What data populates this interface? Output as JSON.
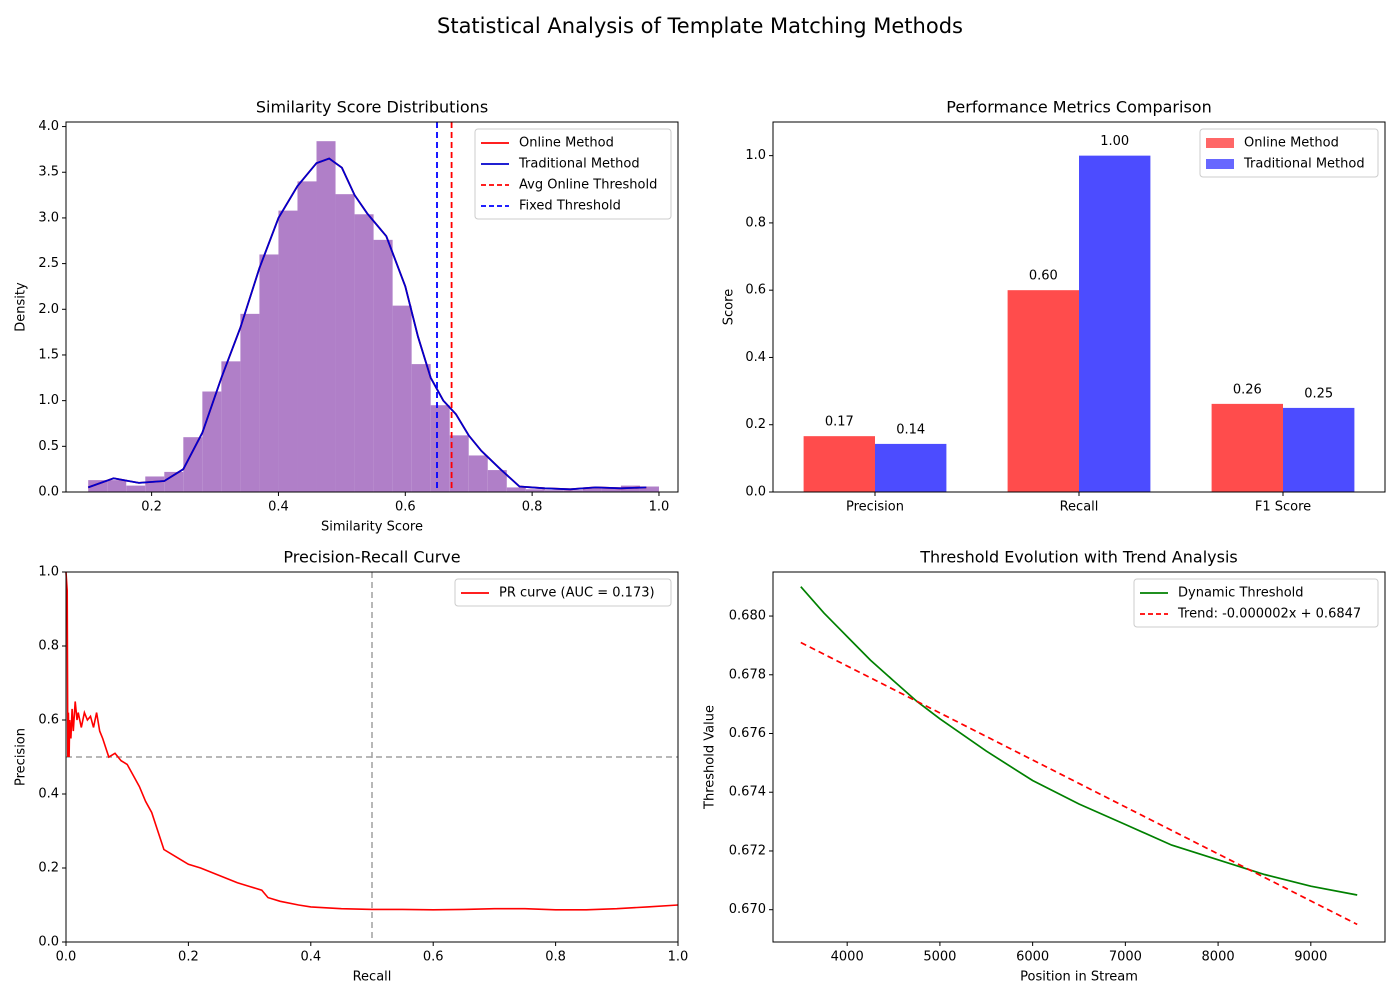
{
  "figure": {
    "title": "Statistical Analysis of Template Matching Methods"
  },
  "chart_data": [
    {
      "id": "dist",
      "type": "histogram+line",
      "title": "Similarity Score Distributions",
      "xlabel": "Similarity Score",
      "ylabel": "Density",
      "xlim": [
        0.065,
        1.03
      ],
      "ylim": [
        0,
        4.05
      ],
      "xticks": [
        0.2,
        0.4,
        0.6,
        0.8,
        1.0
      ],
      "xtick_labels": [
        "0.2",
        "0.4",
        "0.6",
        "0.8",
        "1.0"
      ],
      "yticks": [
        0,
        0.5,
        1.0,
        1.5,
        2.0,
        2.5,
        3.0,
        3.5,
        4.0
      ],
      "ytick_labels": [
        "0.0",
        "0.5",
        "1.0",
        "1.5",
        "2.0",
        "2.5",
        "3.0",
        "3.5",
        "4.0"
      ],
      "histogram": {
        "color": "#b07fc8",
        "bin_edges": [
          0.1,
          0.13,
          0.16,
          0.19,
          0.22,
          0.25,
          0.28,
          0.31,
          0.34,
          0.37,
          0.4,
          0.43,
          0.46,
          0.49,
          0.52,
          0.55,
          0.58,
          0.61,
          0.64,
          0.67,
          0.7,
          0.73,
          0.76,
          0.79,
          0.82,
          0.85,
          0.88,
          0.91,
          0.94,
          0.97,
          1.0
        ],
        "density": [
          0.13,
          0.13,
          0.07,
          0.17,
          0.22,
          0.6,
          1.1,
          1.43,
          1.95,
          2.6,
          3.08,
          3.4,
          3.84,
          3.26,
          3.04,
          2.76,
          2.04,
          1.4,
          0.95,
          0.62,
          0.4,
          0.24,
          0.05,
          0.03,
          0.02,
          0.02,
          0.04,
          0.05,
          0.07,
          0.06
        ]
      },
      "series": [
        {
          "name": "Online Method",
          "color": "#ff0000",
          "style": "solid",
          "x": [
            0.1,
            0.14,
            0.18,
            0.22,
            0.25,
            0.28,
            0.31,
            0.34,
            0.37,
            0.4,
            0.43,
            0.46,
            0.48,
            0.5,
            0.52,
            0.54,
            0.57,
            0.6,
            0.62,
            0.64,
            0.66,
            0.68,
            0.7,
            0.72,
            0.75,
            0.78,
            0.82,
            0.86,
            0.9,
            0.94,
            0.98
          ],
          "y": [
            0.05,
            0.15,
            0.1,
            0.12,
            0.25,
            0.65,
            1.25,
            1.8,
            2.45,
            3.0,
            3.35,
            3.6,
            3.65,
            3.55,
            3.25,
            3.05,
            2.8,
            2.25,
            1.7,
            1.25,
            1.0,
            0.85,
            0.62,
            0.45,
            0.25,
            0.06,
            0.04,
            0.03,
            0.05,
            0.04,
            0.05
          ]
        },
        {
          "name": "Traditional Method",
          "color": "#0000cc",
          "style": "solid",
          "x": [
            0.1,
            0.14,
            0.18,
            0.22,
            0.25,
            0.28,
            0.31,
            0.34,
            0.37,
            0.4,
            0.43,
            0.46,
            0.48,
            0.5,
            0.52,
            0.54,
            0.57,
            0.6,
            0.62,
            0.64,
            0.66,
            0.68,
            0.7,
            0.72,
            0.75,
            0.78,
            0.82,
            0.86,
            0.9,
            0.94,
            0.98
          ],
          "y": [
            0.05,
            0.15,
            0.1,
            0.12,
            0.25,
            0.65,
            1.25,
            1.8,
            2.45,
            3.0,
            3.35,
            3.6,
            3.65,
            3.55,
            3.25,
            3.05,
            2.8,
            2.25,
            1.7,
            1.25,
            1.0,
            0.85,
            0.62,
            0.45,
            0.25,
            0.06,
            0.04,
            0.03,
            0.05,
            0.04,
            0.05
          ]
        },
        {
          "name": "Avg Online Threshold",
          "color": "#ff0000",
          "style": "dashed",
          "vline": 0.673
        },
        {
          "name": "Fixed Threshold",
          "color": "#0000ff",
          "style": "dashed",
          "vline": 0.65
        }
      ],
      "legend": "top-right"
    },
    {
      "id": "metrics",
      "type": "bar",
      "title": "Performance Metrics Comparison",
      "xlabel": "",
      "ylabel": "Score",
      "ylim": [
        0,
        1.1
      ],
      "categories": [
        "Precision",
        "Recall",
        "F1 Score"
      ],
      "yticks": [
        0,
        0.2,
        0.4,
        0.6,
        0.8,
        1.0
      ],
      "ytick_labels": [
        "0.0",
        "0.2",
        "0.4",
        "0.6",
        "0.8",
        "1.0"
      ],
      "series": [
        {
          "name": "Online Method",
          "color": "#ff4c4c",
          "values": [
            0.166,
            0.6,
            0.262
          ],
          "labels": [
            "0.17",
            "0.60",
            "0.26"
          ]
        },
        {
          "name": "Traditional Method",
          "color": "#4c4cff",
          "values": [
            0.143,
            1.0,
            0.25
          ],
          "labels": [
            "0.14",
            "1.00",
            "0.25"
          ]
        }
      ],
      "legend": "top-right"
    },
    {
      "id": "pr",
      "type": "line",
      "title": "Precision-Recall Curve",
      "xlabel": "Recall",
      "ylabel": "Precision",
      "xlim": [
        0,
        1
      ],
      "ylim": [
        0,
        1
      ],
      "xticks": [
        0,
        0.2,
        0.4,
        0.6,
        0.8,
        1.0
      ],
      "xtick_labels": [
        "0.0",
        "0.2",
        "0.4",
        "0.6",
        "0.8",
        "1.0"
      ],
      "yticks": [
        0,
        0.2,
        0.4,
        0.6,
        0.8,
        1.0
      ],
      "ytick_labels": [
        "0.0",
        "0.2",
        "0.4",
        "0.6",
        "0.8",
        "1.0"
      ],
      "reference_lines": {
        "hline": 0.5,
        "vline": 0.5,
        "color": "#a0a0a0"
      },
      "series": [
        {
          "name": "PR curve (AUC = 0.173)",
          "color": "#ff0000",
          "x": [
            0.0,
            0.002,
            0.003,
            0.004,
            0.005,
            0.006,
            0.008,
            0.01,
            0.012,
            0.015,
            0.018,
            0.02,
            0.025,
            0.03,
            0.035,
            0.04,
            0.045,
            0.05,
            0.055,
            0.06,
            0.07,
            0.08,
            0.09,
            0.1,
            0.11,
            0.12,
            0.13,
            0.14,
            0.15,
            0.16,
            0.18,
            0.2,
            0.22,
            0.25,
            0.28,
            0.3,
            0.32,
            0.33,
            0.35,
            0.38,
            0.4,
            0.45,
            0.5,
            0.55,
            0.6,
            0.65,
            0.7,
            0.75,
            0.8,
            0.85,
            0.9,
            0.95,
            1.0
          ],
          "y": [
            1.0,
            0.95,
            0.5,
            0.62,
            0.5,
            0.6,
            0.55,
            0.63,
            0.57,
            0.65,
            0.6,
            0.62,
            0.58,
            0.62,
            0.6,
            0.61,
            0.58,
            0.62,
            0.57,
            0.55,
            0.5,
            0.51,
            0.49,
            0.48,
            0.45,
            0.42,
            0.38,
            0.35,
            0.3,
            0.25,
            0.23,
            0.21,
            0.2,
            0.18,
            0.16,
            0.15,
            0.14,
            0.12,
            0.11,
            0.1,
            0.095,
            0.09,
            0.088,
            0.088,
            0.087,
            0.088,
            0.09,
            0.09,
            0.087,
            0.087,
            0.09,
            0.095,
            0.1
          ]
        }
      ],
      "legend": "top-right"
    },
    {
      "id": "threshold",
      "type": "line",
      "title": "Threshold Evolution with Trend Analysis",
      "xlabel": "Position in Stream",
      "ylabel": "Threshold Value",
      "xlim": [
        3200,
        9800
      ],
      "ylim": [
        0.6689,
        0.6815
      ],
      "xticks": [
        4000,
        5000,
        6000,
        7000,
        8000,
        9000
      ],
      "xtick_labels": [
        "4000",
        "5000",
        "6000",
        "7000",
        "8000",
        "9000"
      ],
      "yticks": [
        0.67,
        0.672,
        0.674,
        0.676,
        0.678,
        0.68
      ],
      "ytick_labels": [
        "0.670",
        "0.672",
        "0.674",
        "0.676",
        "0.678",
        "0.680"
      ],
      "series": [
        {
          "name": "Dynamic Threshold",
          "color": "#008000",
          "style": "solid",
          "x": [
            3500,
            3750,
            4000,
            4250,
            4500,
            4750,
            5000,
            5500,
            6000,
            6500,
            7000,
            7500,
            8000,
            8500,
            9000,
            9500
          ],
          "y": [
            0.681,
            0.6801,
            0.6793,
            0.6785,
            0.6778,
            0.6771,
            0.6765,
            0.6754,
            0.6744,
            0.6736,
            0.6729,
            0.6722,
            0.6717,
            0.6712,
            0.6708,
            0.6705
          ]
        },
        {
          "name": "Trend: -0.000002x + 0.6847",
          "color": "#ff0000",
          "style": "dashed",
          "x": [
            3500,
            9500
          ],
          "y": [
            0.6791,
            0.6695
          ]
        }
      ],
      "legend": "top-right"
    }
  ]
}
